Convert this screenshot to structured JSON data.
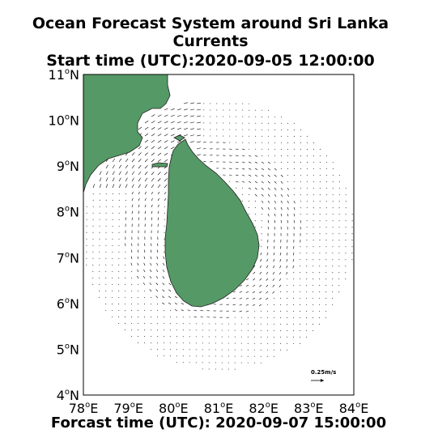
{
  "title": {
    "line1": "Ocean Forecast System around Sri Lanka",
    "line2": "Currents",
    "line3": "Start time (UTC):2020-09-05 12:00:00"
  },
  "footer": "Forcast time (UTC): 2020-09-07 15:00:00",
  "map": {
    "lon_range": [
      78,
      84
    ],
    "lat_range": [
      4,
      11
    ],
    "lon_ticks": [
      {
        "deg": "78",
        "sup": "o",
        "hemi": "E"
      },
      {
        "deg": "79",
        "sup": "o",
        "hemi": "E"
      },
      {
        "deg": "80",
        "sup": "o",
        "hemi": "E"
      },
      {
        "deg": "81",
        "sup": "o",
        "hemi": "E"
      },
      {
        "deg": "82",
        "sup": "o",
        "hemi": "E"
      },
      {
        "deg": "83",
        "sup": "o",
        "hemi": "E"
      },
      {
        "deg": "84",
        "sup": "o",
        "hemi": "E"
      }
    ],
    "lat_ticks": [
      {
        "deg": "4",
        "sup": "o",
        "hemi": "N"
      },
      {
        "deg": "5",
        "sup": "o",
        "hemi": "N"
      },
      {
        "deg": "6",
        "sup": "o",
        "hemi": "N"
      },
      {
        "deg": "7",
        "sup": "o",
        "hemi": "N"
      },
      {
        "deg": "8",
        "sup": "o",
        "hemi": "N"
      },
      {
        "deg": "9",
        "sup": "o",
        "hemi": "N"
      },
      {
        "deg": "10",
        "sup": "o",
        "hemi": "N"
      },
      {
        "deg": "11",
        "sup": "o",
        "hemi": "N"
      }
    ],
    "land_color": "#559966",
    "vector_color": "#000000",
    "scale_label": "0.25m/s",
    "scale_value_ms": 0.25
  }
}
